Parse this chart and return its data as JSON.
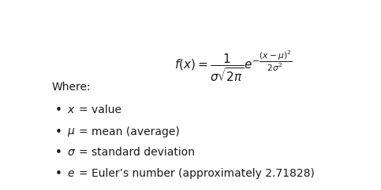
{
  "formula_latex": "$f(x) = \\dfrac{1}{\\sigma\\sqrt{2\\pi}}e^{-\\dfrac{(x-\\mu)^2}{2\\sigma^2}}$",
  "where_label": "Where:",
  "bullets": [
    [
      "$x$",
      "= value"
    ],
    [
      "$\\mu$",
      "= mean (average)"
    ],
    [
      "$\\sigma$",
      "= standard deviation"
    ],
    [
      "$e$",
      "= Euler’s number (approximately 2.71828)"
    ]
  ],
  "bg_color": "#ffffff",
  "text_color": "#1a1a1a",
  "formula_fontsize": 11,
  "where_fontsize": 10,
  "bullet_fontsize": 10,
  "fig_width": 4.83,
  "fig_height": 2.42,
  "dpi": 100
}
